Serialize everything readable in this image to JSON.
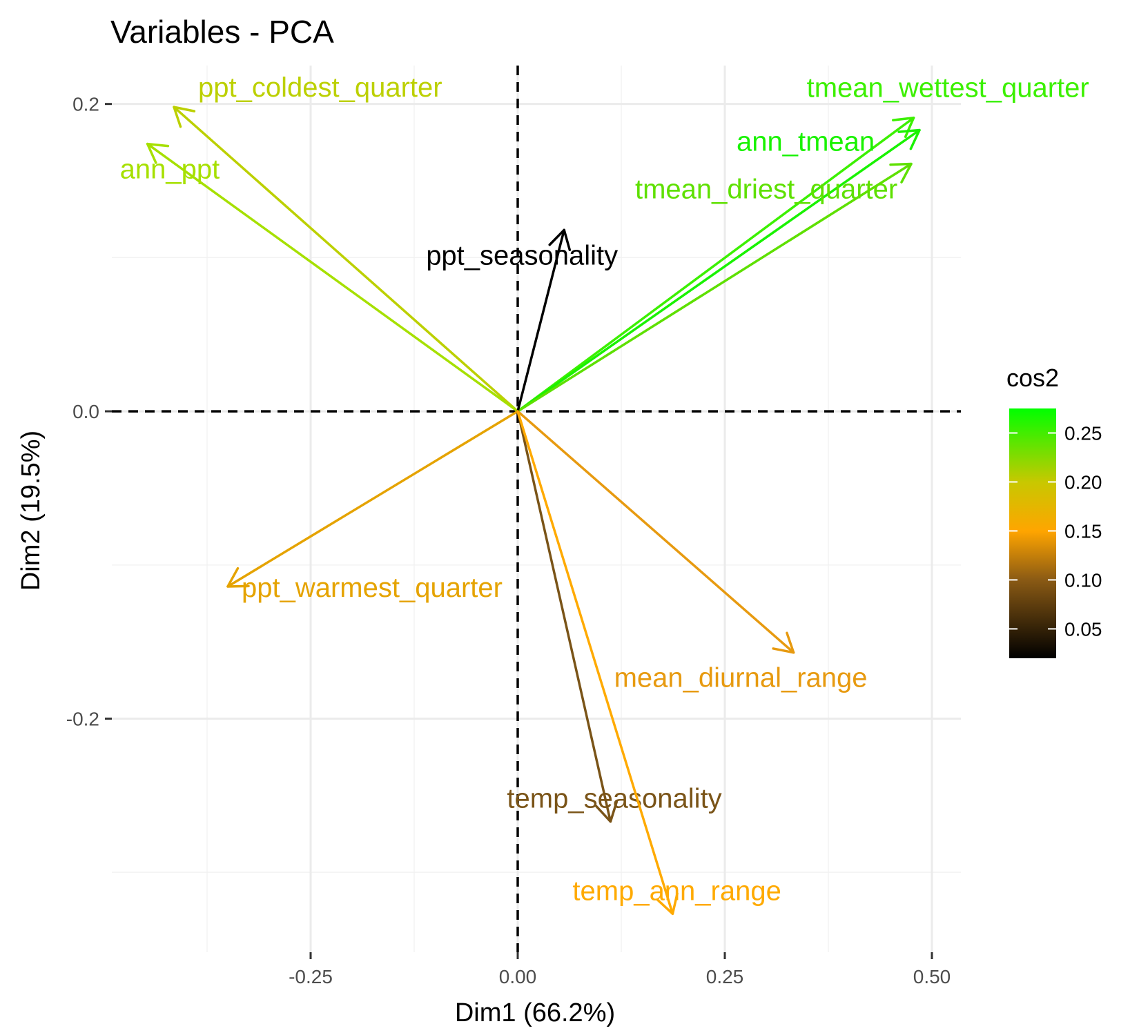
{
  "chart_data": {
    "type": "scatter",
    "title": "Variables - PCA",
    "xlabel": "Dim1 (66.2%)",
    "ylabel": "Dim2 (19.5%)",
    "xlim": [
      -0.49,
      0.535
    ],
    "ylim": [
      -0.352,
      0.225
    ],
    "x_ticks": [
      -0.25,
      0.0,
      0.25,
      0.5
    ],
    "x_tick_labels": [
      "-0.25",
      "0.00",
      "0.25",
      "0.50"
    ],
    "y_ticks": [
      -0.2,
      0.0,
      0.2
    ],
    "y_tick_labels": [
      "-0.2",
      "0.0",
      "0.2"
    ],
    "grid": true,
    "reference_lines": {
      "x": 0,
      "y": 0,
      "style": "dashed"
    },
    "legend": {
      "title": "cos2",
      "position": "right",
      "scale_min": 0.02,
      "scale_max": 0.275,
      "ticks": [
        0.05,
        0.1,
        0.15,
        0.2,
        0.25
      ],
      "tick_labels": [
        "0.05",
        "0.10",
        "0.15",
        "0.20",
        "0.25"
      ],
      "gradient": [
        {
          "value": 0.02,
          "color": "#000000"
        },
        {
          "value": 0.1,
          "color": "#8a5a14"
        },
        {
          "value": 0.15,
          "color": "#ffa500"
        },
        {
          "value": 0.2,
          "color": "#c8c800"
        },
        {
          "value": 0.275,
          "color": "#00ff00"
        }
      ]
    },
    "variables": [
      {
        "name": "ppt_coldest_quarter",
        "x": -0.415,
        "y": 0.198,
        "color": "#bcd000"
      },
      {
        "name": "ann_ppt",
        "x": -0.447,
        "y": 0.174,
        "color": "#a6e000"
      },
      {
        "name": "tmean_wettest_quarter",
        "x": 0.478,
        "y": 0.191,
        "color": "#3cf000"
      },
      {
        "name": "ann_tmean",
        "x": 0.485,
        "y": 0.183,
        "color": "#19f200"
      },
      {
        "name": "tmean_driest_quarter",
        "x": 0.475,
        "y": 0.161,
        "color": "#5ee000"
      },
      {
        "name": "ppt_seasonality",
        "x": 0.056,
        "y": 0.118,
        "color": "#000000"
      },
      {
        "name": "ppt_warmest_quarter",
        "x": -0.35,
        "y": -0.114,
        "color": "#e5a300"
      },
      {
        "name": "mean_diurnal_range",
        "x": 0.333,
        "y": -0.157,
        "color": "#e79a10"
      },
      {
        "name": "temp_seasonality",
        "x": 0.112,
        "y": -0.267,
        "color": "#7a5418"
      },
      {
        "name": "temp_ann_range",
        "x": 0.187,
        "y": -0.327,
        "color": "#ffaa00"
      }
    ]
  }
}
